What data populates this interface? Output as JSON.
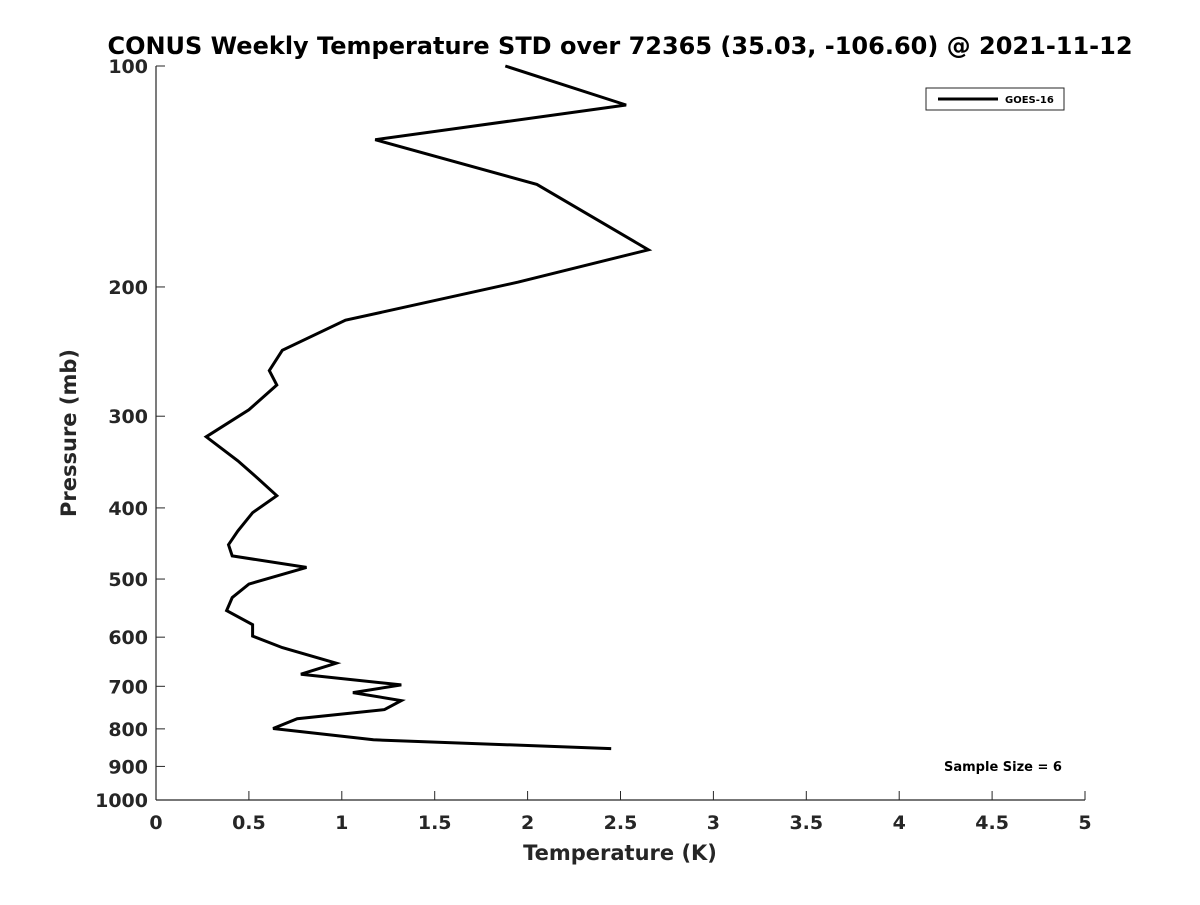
{
  "chart_data": {
    "type": "line",
    "title": "CONUS Weekly Temperature STD over 72365 (35.03, -106.60) @ 2021-11-12",
    "xlabel": "Temperature (K)",
    "ylabel": "Pressure (mb)",
    "xlim": [
      0,
      5
    ],
    "ylim": [
      1000,
      100
    ],
    "y_scale": "log",
    "y_reversed": true,
    "x_ticks": [
      0,
      0.5,
      1,
      1.5,
      2,
      2.5,
      3,
      3.5,
      4,
      4.5,
      5
    ],
    "x_tick_labels": [
      "0",
      "0.5",
      "1",
      "1.5",
      "2",
      "2.5",
      "3",
      "3.5",
      "4",
      "4.5",
      "5"
    ],
    "y_ticks": [
      100,
      200,
      300,
      400,
      500,
      600,
      700,
      800,
      900,
      1000
    ],
    "y_tick_labels": [
      "100",
      "200",
      "300",
      "400",
      "500",
      "600",
      "700",
      "800",
      "900",
      "1000"
    ],
    "grid": false,
    "legend_position": "top-right",
    "annotation": "Sample Size = 6",
    "series": [
      {
        "name": "GOES-16",
        "color": "#000000",
        "x": [
          1.88,
          2.53,
          1.18,
          2.05,
          2.65,
          1.95,
          1.02,
          0.68,
          0.61,
          0.65,
          0.5,
          0.27,
          0.44,
          0.55,
          0.65,
          0.52,
          0.44,
          0.39,
          0.41,
          0.81,
          0.5,
          0.41,
          0.38,
          0.52,
          0.52,
          0.68,
          0.97,
          0.78,
          1.32,
          1.06,
          1.32,
          1.23,
          0.76,
          0.63,
          1.17,
          2.45
        ],
        "y": [
          100,
          113,
          126,
          145,
          178,
          197,
          222,
          244,
          260,
          272,
          294,
          320,
          345,
          365,
          385,
          406,
          430,
          449,
          465,
          482,
          508,
          530,
          552,
          577,
          598,
          620,
          651,
          674,
          697,
          714,
          732,
          753,
          775,
          799,
          828,
          851
        ]
      }
    ]
  }
}
